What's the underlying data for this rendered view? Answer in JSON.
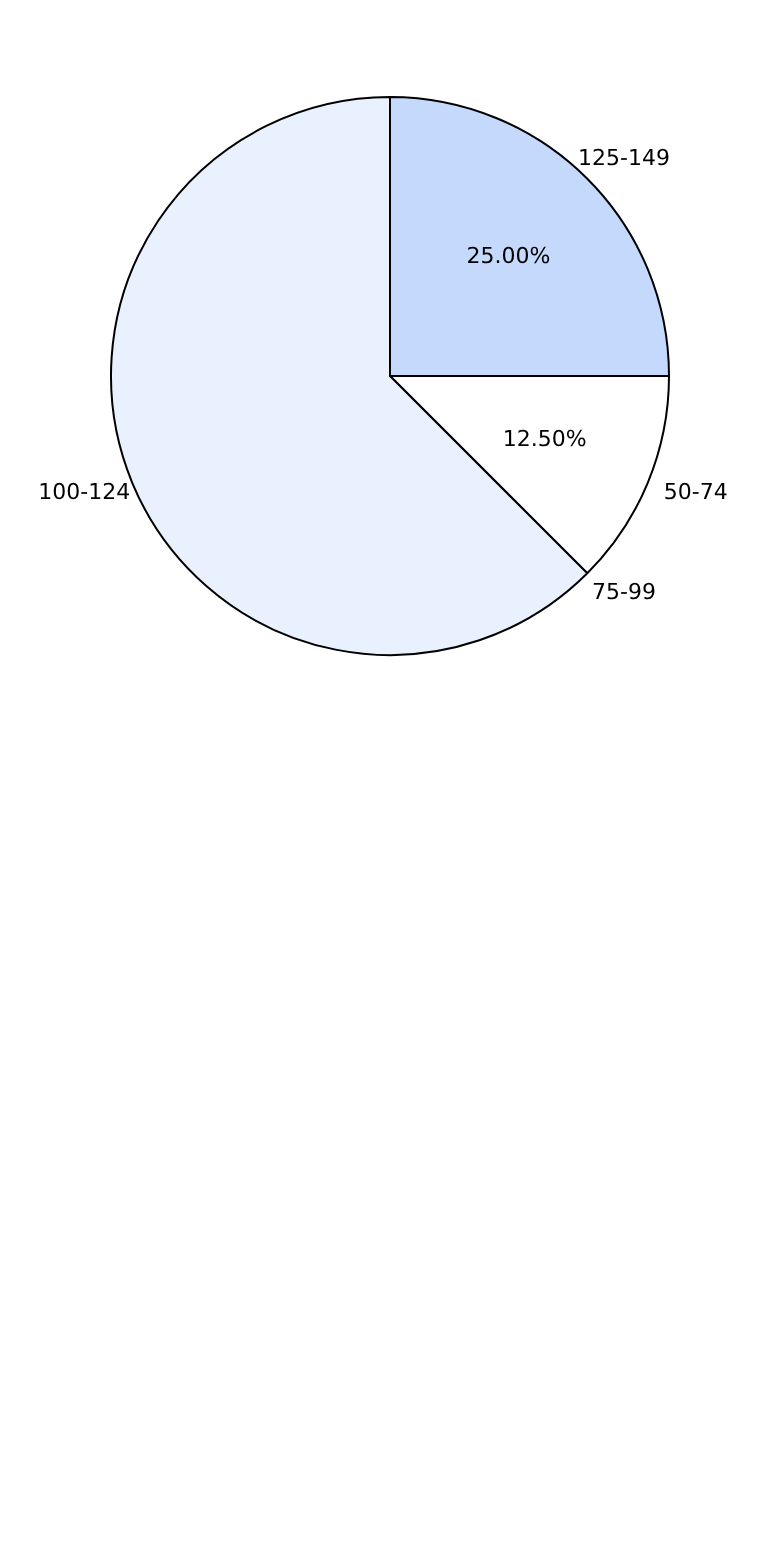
{
  "chart_data": {
    "type": "pie",
    "categories": [
      "50-74",
      "75-99",
      "100-124",
      "125-149"
    ],
    "values": [
      12.5,
      0,
      62.5,
      25
    ],
    "colors": [
      "#ffffff",
      "#c8e08c",
      "#eaf1fe",
      "#c5d9fc"
    ],
    "value_labels": [
      "12.50%",
      null,
      null,
      "25.00%"
    ],
    "legend": false
  }
}
